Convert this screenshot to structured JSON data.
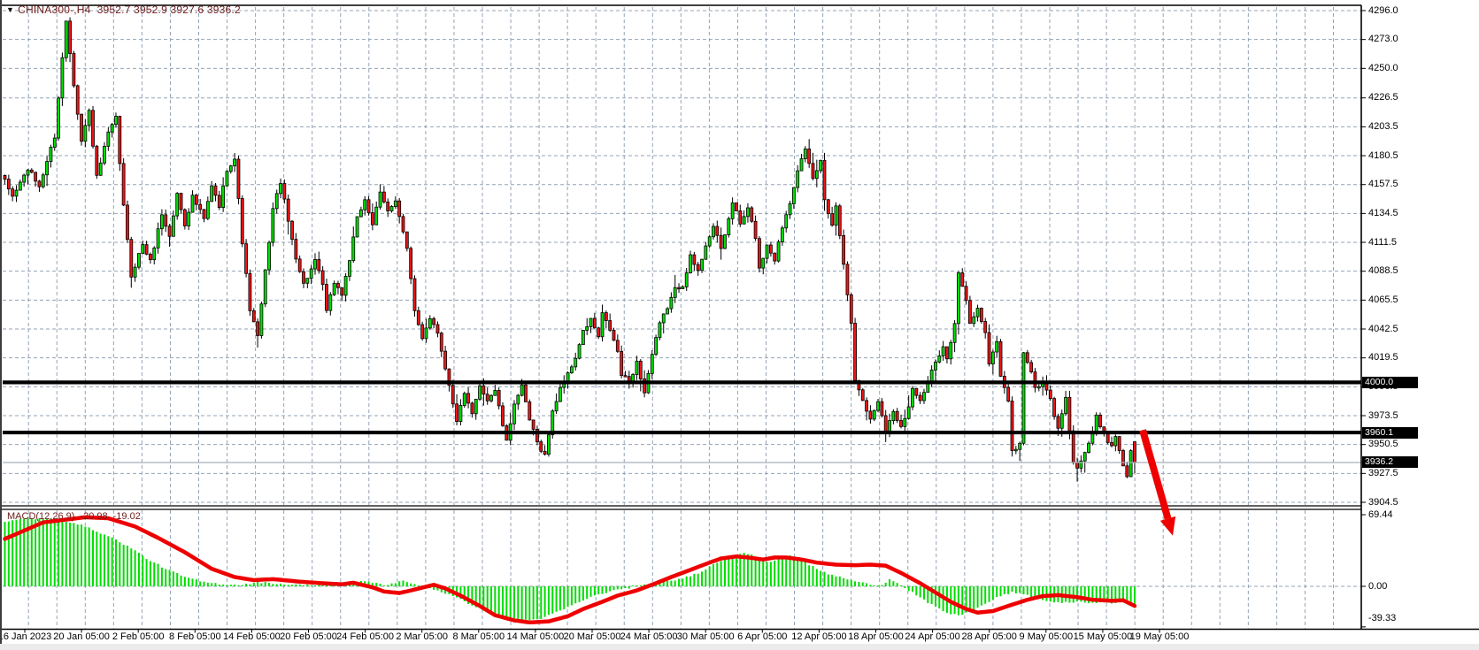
{
  "header": {
    "dropdown_glyph": "▼",
    "symbol_period": "CHINA300-,H4",
    "ohlc_readout": "3952.7 3952.9 3927.6 3936.2",
    "open": "3952.7",
    "high": "3952.9",
    "low": "3927.6",
    "close": "3936.2",
    "text_color": "#6e1a1a"
  },
  "macd_panel": {
    "label": "MACD(12,26,9)",
    "main_value": "-20.98",
    "signal_value": "-19.02",
    "ticks": [
      {
        "label": "69.44",
        "value": 69.44
      },
      {
        "label": "0.00",
        "value": 0
      },
      {
        "label": "-39.33",
        "value": -39.33
      }
    ]
  },
  "chart_data": {
    "type": "candlestick",
    "title": "CHINA300-,H4",
    "symbol": "CHINA300",
    "timeframe": "H4",
    "grid": true,
    "y_axis_ticks": [
      {
        "label": "4296.0",
        "value": 4296.0
      },
      {
        "label": "4273.0",
        "value": 4273.0
      },
      {
        "label": "4250.0",
        "value": 4250.0
      },
      {
        "label": "4226.5",
        "value": 4226.5
      },
      {
        "label": "4203.5",
        "value": 4203.5
      },
      {
        "label": "4180.5",
        "value": 4180.5
      },
      {
        "label": "4157.5",
        "value": 4157.5
      },
      {
        "label": "4134.5",
        "value": 4134.5
      },
      {
        "label": "4111.5",
        "value": 4111.5
      },
      {
        "label": "4088.5",
        "value": 4088.5
      },
      {
        "label": "4065.5",
        "value": 4065.5
      },
      {
        "label": "4042.5",
        "value": 4042.5
      },
      {
        "label": "4019.5",
        "value": 4019.5
      },
      {
        "label": "3996.5",
        "value": 3996.5
      },
      {
        "label": "3973.5",
        "value": 3973.5
      },
      {
        "label": "3950.5",
        "value": 3950.5
      },
      {
        "label": "3927.5",
        "value": 3927.5
      },
      {
        "label": "3904.5",
        "value": 3904.5
      }
    ],
    "x_axis_ticks": [
      "16 Jan 2023",
      "20 Jan 05:00",
      "2 Feb 05:00",
      "8 Feb 05:00",
      "14 Feb 05:00",
      "20 Feb 05:00",
      "24 Feb 05:00",
      "2 Mar 05:00",
      "8 Mar 05:00",
      "14 Mar 05:00",
      "20 Mar 05:00",
      "24 Mar 05:00",
      "30 Mar 05:00",
      "6 Apr 05:00",
      "12 Apr 05:00",
      "18 Apr 05:00",
      "24 Apr 05:00",
      "28 Apr 05:00",
      "9 May 05:00",
      "15 May 05:00",
      "19 May 05:00"
    ],
    "price_range_visible": [
      3904.5,
      4296.0
    ],
    "price_levels": [
      {
        "label": "4000.0",
        "value": 4000.0,
        "style": "thick-black-hline"
      },
      {
        "label": "3960.1",
        "value": 3960.1,
        "style": "thick-black-hline"
      },
      {
        "label": "3936.2",
        "value": 3936.2,
        "style": "current-price-thin-gray"
      }
    ],
    "bars_count": 296,
    "last_bar_ohlc": {
      "open": 3952.7,
      "high": 3952.9,
      "low": 3927.6,
      "close": 3936.2
    },
    "close_path_keyframes": [
      [
        0,
        4160
      ],
      [
        2,
        4148
      ],
      [
        6,
        4170
      ],
      [
        9,
        4156
      ],
      [
        13,
        4196
      ],
      [
        15,
        4258
      ],
      [
        16,
        4288
      ],
      [
        18,
        4238
      ],
      [
        20,
        4192
      ],
      [
        22,
        4216
      ],
      [
        24,
        4163
      ],
      [
        27,
        4198
      ],
      [
        29,
        4210
      ],
      [
        31,
        4140
      ],
      [
        33,
        4085
      ],
      [
        36,
        4110
      ],
      [
        38,
        4096
      ],
      [
        41,
        4134
      ],
      [
        43,
        4116
      ],
      [
        45,
        4150
      ],
      [
        47,
        4126
      ],
      [
        49,
        4148
      ],
      [
        52,
        4130
      ],
      [
        54,
        4156
      ],
      [
        56,
        4140
      ],
      [
        58,
        4170
      ],
      [
        60,
        4178
      ],
      [
        62,
        4112
      ],
      [
        64,
        4058
      ],
      [
        66,
        4036
      ],
      [
        68,
        4088
      ],
      [
        70,
        4138
      ],
      [
        72,
        4160
      ],
      [
        74,
        4128
      ],
      [
        76,
        4100
      ],
      [
        78,
        4078
      ],
      [
        81,
        4096
      ],
      [
        83,
        4078
      ],
      [
        84,
        4056
      ],
      [
        86,
        4080
      ],
      [
        88,
        4070
      ],
      [
        90,
        4098
      ],
      [
        92,
        4130
      ],
      [
        94,
        4146
      ],
      [
        96,
        4126
      ],
      [
        98,
        4150
      ],
      [
        100,
        4136
      ],
      [
        102,
        4146
      ],
      [
        105,
        4106
      ],
      [
        107,
        4056
      ],
      [
        109,
        4036
      ],
      [
        111,
        4052
      ],
      [
        113,
        4040
      ],
      [
        115,
        4012
      ],
      [
        117,
        3982
      ],
      [
        118,
        3970
      ],
      [
        120,
        3990
      ],
      [
        122,
        3974
      ],
      [
        124,
        3998
      ],
      [
        126,
        3986
      ],
      [
        128,
        3994
      ],
      [
        130,
        3966
      ],
      [
        131,
        3952
      ],
      [
        133,
        3984
      ],
      [
        135,
        3996
      ],
      [
        137,
        3970
      ],
      [
        139,
        3952
      ],
      [
        141,
        3942
      ],
      [
        143,
        3976
      ],
      [
        145,
        3996
      ],
      [
        147,
        4006
      ],
      [
        149,
        4020
      ],
      [
        151,
        4040
      ],
      [
        153,
        4050
      ],
      [
        155,
        4036
      ],
      [
        156,
        4054
      ],
      [
        158,
        4042
      ],
      [
        160,
        4024
      ],
      [
        161,
        4006
      ],
      [
        163,
        4000
      ],
      [
        165,
        4016
      ],
      [
        167,
        3992
      ],
      [
        169,
        4022
      ],
      [
        171,
        4046
      ],
      [
        173,
        4060
      ],
      [
        175,
        4074
      ],
      [
        177,
        4078
      ],
      [
        179,
        4100
      ],
      [
        181,
        4088
      ],
      [
        183,
        4110
      ],
      [
        185,
        4124
      ],
      [
        187,
        4106
      ],
      [
        189,
        4130
      ],
      [
        190,
        4144
      ],
      [
        192,
        4126
      ],
      [
        194,
        4138
      ],
      [
        196,
        4116
      ],
      [
        197,
        4090
      ],
      [
        199,
        4110
      ],
      [
        201,
        4098
      ],
      [
        203,
        4124
      ],
      [
        205,
        4144
      ],
      [
        207,
        4170
      ],
      [
        209,
        4184
      ],
      [
        211,
        4162
      ],
      [
        213,
        4176
      ],
      [
        214,
        4146
      ],
      [
        216,
        4126
      ],
      [
        217,
        4140
      ],
      [
        219,
        4096
      ],
      [
        221,
        4046
      ],
      [
        222,
        4002
      ],
      [
        224,
        3986
      ],
      [
        226,
        3970
      ],
      [
        228,
        3986
      ],
      [
        230,
        3962
      ],
      [
        232,
        3976
      ],
      [
        234,
        3966
      ],
      [
        236,
        3980
      ],
      [
        237,
        3996
      ],
      [
        239,
        3984
      ],
      [
        241,
        4000
      ],
      [
        243,
        4016
      ],
      [
        245,
        4030
      ],
      [
        246,
        4018
      ],
      [
        248,
        4046
      ],
      [
        249,
        4086
      ],
      [
        251,
        4066
      ],
      [
        252,
        4046
      ],
      [
        254,
        4060
      ],
      [
        256,
        4038
      ],
      [
        257,
        4016
      ],
      [
        259,
        4032
      ],
      [
        260,
        4006
      ],
      [
        262,
        3986
      ],
      [
        263,
        3944
      ],
      [
        265,
        3952
      ],
      [
        266,
        4022
      ],
      [
        268,
        4010
      ],
      [
        269,
        3994
      ],
      [
        271,
        4000
      ],
      [
        273,
        3986
      ],
      [
        275,
        3962
      ],
      [
        277,
        3990
      ],
      [
        279,
        3936
      ],
      [
        280,
        3932
      ],
      [
        283,
        3950
      ],
      [
        285,
        3972
      ],
      [
        287,
        3960
      ],
      [
        289,
        3948
      ],
      [
        290,
        3958
      ],
      [
        292,
        3934
      ],
      [
        293,
        3926
      ],
      [
        294,
        3946
      ],
      [
        295,
        3936.2
      ]
    ],
    "macd": {
      "params": "12,26,9",
      "last_main": -20.98,
      "last_signal": -19.02,
      "axis_range": [
        -39.33,
        69.44
      ],
      "signal_keyframes": [
        [
          0,
          46
        ],
        [
          10,
          62
        ],
        [
          21,
          67
        ],
        [
          27,
          66
        ],
        [
          34,
          58
        ],
        [
          40,
          47
        ],
        [
          47,
          33
        ],
        [
          54,
          17
        ],
        [
          60,
          9
        ],
        [
          65,
          6
        ],
        [
          70,
          7
        ],
        [
          77,
          4.5
        ],
        [
          83,
          3
        ],
        [
          88,
          2
        ],
        [
          91,
          3.5
        ],
        [
          96,
          -1
        ],
        [
          99,
          -5
        ],
        [
          103,
          -6.5
        ],
        [
          106,
          -4
        ],
        [
          112,
          1.5
        ],
        [
          115,
          -2
        ],
        [
          119,
          -9
        ],
        [
          124,
          -19
        ],
        [
          128,
          -28
        ],
        [
          133,
          -33
        ],
        [
          137,
          -35
        ],
        [
          142,
          -34
        ],
        [
          147,
          -29
        ],
        [
          151,
          -22
        ],
        [
          156,
          -15
        ],
        [
          160,
          -9
        ],
        [
          165,
          -4
        ],
        [
          170,
          3
        ],
        [
          174,
          9
        ],
        [
          179,
          16
        ],
        [
          184,
          23
        ],
        [
          187,
          27
        ],
        [
          191,
          29
        ],
        [
          194,
          28
        ],
        [
          198,
          26
        ],
        [
          201,
          28
        ],
        [
          204,
          28
        ],
        [
          208,
          26
        ],
        [
          212,
          23
        ],
        [
          217,
          21
        ],
        [
          222,
          20.5
        ],
        [
          226,
          21
        ],
        [
          230,
          20
        ],
        [
          234,
          13
        ],
        [
          239,
          3
        ],
        [
          243,
          -6
        ],
        [
          247,
          -15
        ],
        [
          251,
          -22
        ],
        [
          254,
          -25.5
        ],
        [
          258,
          -24
        ],
        [
          262,
          -19
        ],
        [
          267,
          -13
        ],
        [
          271,
          -9.5
        ],
        [
          275,
          -8.5
        ],
        [
          280,
          -10.5
        ],
        [
          284,
          -13
        ],
        [
          289,
          -14
        ],
        [
          292,
          -13.5
        ],
        [
          295,
          -19
        ]
      ],
      "histogram_keyframes": [
        [
          0,
          62
        ],
        [
          5,
          66
        ],
        [
          12,
          65
        ],
        [
          18,
          62
        ],
        [
          23,
          55
        ],
        [
          28,
          47
        ],
        [
          33,
          37
        ],
        [
          37,
          27
        ],
        [
          42,
          17
        ],
        [
          47,
          9
        ],
        [
          52,
          4
        ],
        [
          57,
          2
        ],
        [
          62,
          1.5
        ],
        [
          66,
          4
        ],
        [
          70,
          3
        ],
        [
          75,
          1.5
        ],
        [
          80,
          1
        ],
        [
          85,
          1.5
        ],
        [
          90,
          3
        ],
        [
          93,
          5
        ],
        [
          96,
          4
        ],
        [
          99,
          1
        ],
        [
          102,
          3.5
        ],
        [
          104,
          5
        ],
        [
          107,
          2
        ],
        [
          110,
          -1
        ],
        [
          113,
          -4
        ],
        [
          116,
          -8
        ],
        [
          119,
          -13
        ],
        [
          122,
          -18
        ],
        [
          125,
          -23
        ],
        [
          128,
          -27
        ],
        [
          131,
          -30
        ],
        [
          134,
          -32
        ],
        [
          137,
          -33
        ],
        [
          140,
          -31
        ],
        [
          143,
          -27
        ],
        [
          146,
          -22
        ],
        [
          149,
          -17
        ],
        [
          152,
          -12
        ],
        [
          155,
          -8
        ],
        [
          158,
          -5
        ],
        [
          161,
          -2.5
        ],
        [
          164,
          -1
        ],
        [
          166,
          0.5
        ],
        [
          169,
          2
        ],
        [
          172,
          4
        ],
        [
          175,
          6
        ],
        [
          178,
          9
        ],
        [
          181,
          13
        ],
        [
          183,
          17
        ],
        [
          185,
          21
        ],
        [
          187,
          25
        ],
        [
          189,
          29
        ],
        [
          191,
          31
        ],
        [
          193,
          33
        ],
        [
          195,
          31
        ],
        [
          197,
          27
        ],
        [
          199,
          23
        ],
        [
          201,
          25
        ],
        [
          203,
          28
        ],
        [
          205,
          30
        ],
        [
          207,
          27
        ],
        [
          209,
          23
        ],
        [
          211,
          19
        ],
        [
          213,
          15
        ],
        [
          215,
          12
        ],
        [
          217,
          10
        ],
        [
          219,
          8
        ],
        [
          221,
          6
        ],
        [
          223,
          4
        ],
        [
          225,
          2.5
        ],
        [
          227,
          1.5
        ],
        [
          229,
          1
        ],
        [
          231,
          7
        ],
        [
          233,
          4
        ],
        [
          235,
          -2
        ],
        [
          237,
          -6
        ],
        [
          239,
          -11
        ],
        [
          241,
          -16
        ],
        [
          243,
          -20
        ],
        [
          245,
          -24
        ],
        [
          247,
          -27
        ],
        [
          249,
          -28
        ],
        [
          251,
          -26
        ],
        [
          253,
          -23
        ],
        [
          255,
          -19
        ],
        [
          257,
          -15
        ],
        [
          259,
          -11
        ],
        [
          261,
          -8
        ],
        [
          263,
          -6
        ],
        [
          265,
          -7
        ],
        [
          267,
          -9
        ],
        [
          269,
          -11
        ],
        [
          271,
          -13
        ],
        [
          273,
          -15
        ],
        [
          275,
          -16
        ],
        [
          277,
          -15
        ],
        [
          279,
          -16
        ],
        [
          281,
          -15
        ],
        [
          283,
          -16
        ],
        [
          285,
          -17
        ],
        [
          287,
          -15
        ],
        [
          289,
          -16
        ],
        [
          291,
          -15
        ],
        [
          293,
          -16
        ],
        [
          295,
          -21
        ]
      ]
    },
    "annotation_arrow": {
      "description": "thick red down-right arrow after last candle",
      "from_price": 3962,
      "to_price": 3878,
      "color": "#ee0000"
    },
    "colors": {
      "background": "#ffffff",
      "grid": "#94a3b5",
      "candle_up": "#00e000",
      "candle_down": "#ee1515",
      "candle_outline": "#000000",
      "macd_histogram": "#00dd00",
      "macd_signal": "#ee0000",
      "axis_text": "#000000",
      "level_label_bg": "#000000",
      "level_label_text": "#ffffff",
      "current_price_line": "#a8aebc",
      "annotation": "#ee0000"
    }
  }
}
